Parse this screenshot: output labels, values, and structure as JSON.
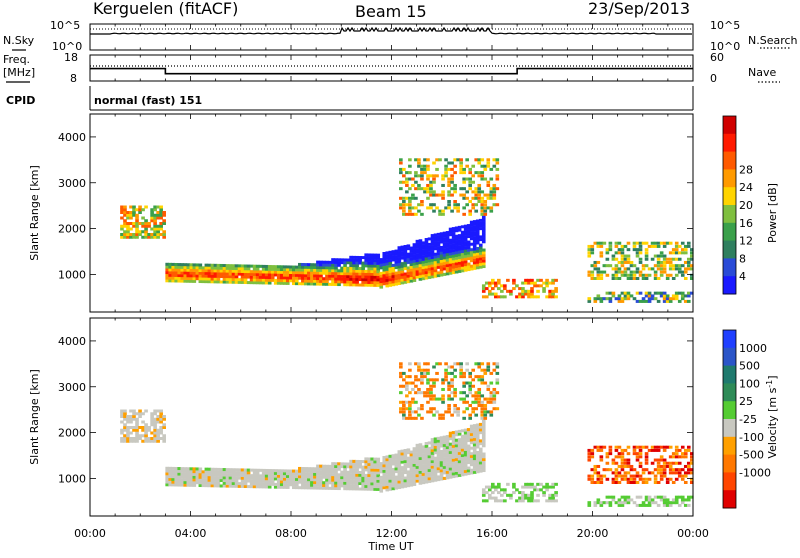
{
  "header": {
    "station": "Kerguelen (fitACF)",
    "beam": "Beam 15",
    "date": "23/Sep/2013"
  },
  "left_labels": {
    "nsky": "N.Sky",
    "freq_line1": "Freq.",
    "freq_line2": "[MHz]",
    "cpid": "CPID"
  },
  "right_labels": {
    "nsearch": "N.Search",
    "nave": "Nave"
  },
  "cpid_text": "normal (fast) 151",
  "x_axis_label": "Time UT",
  "y_axis_label": "Slant Range [km]",
  "power_label": "Power [dB]",
  "velocity_label_main": "Velocity [m s",
  "velocity_label_exp": "-1",
  "velocity_label_close": "]",
  "colors": {
    "power": [
      "#1a1aff",
      "#2a4bd7",
      "#2f7f5f",
      "#3aa04a",
      "#7fbf3f",
      "#ffd400",
      "#ff9a00",
      "#ff5a00",
      "#ff1a00",
      "#d00000"
    ],
    "velocity": [
      "#1f3fff",
      "#2b55c8",
      "#1f7a6e",
      "#2e8b57",
      "#55cc33",
      "#c8c8c0",
      "#ffa000",
      "#ff7800",
      "#ff4500",
      "#e00000"
    ],
    "frame": "#000000"
  },
  "chart_data": [
    {
      "type": "line",
      "name": "nsky-nsearch-strip",
      "y_left_ticks": [
        "10^5",
        "10^0"
      ],
      "y_right_ticks": [
        "10^5",
        "10^0"
      ]
    },
    {
      "type": "line",
      "name": "freq-nave-strip",
      "y_left_ticks": [
        "18",
        "8"
      ],
      "y_right_ticks": [
        "60",
        "0"
      ],
      "freq_steps": [
        {
          "start": 0.0,
          "end": 3.0,
          "value": 12.8
        },
        {
          "start": 3.0,
          "end": 17.0,
          "value": 10.8
        },
        {
          "start": 17.0,
          "end": 24.0,
          "value": 12.8
        }
      ]
    },
    {
      "type": "heatmap",
      "name": "power",
      "x_range_hours": [
        0,
        24
      ],
      "y_range_km": [
        180,
        4500
      ],
      "y_ticks": [
        "1000",
        "2000",
        "3000",
        "4000"
      ],
      "colorbar_ticks": [
        "4",
        "8",
        "12",
        "16",
        "20",
        "24",
        "28"
      ]
    },
    {
      "type": "heatmap",
      "name": "velocity",
      "x_range_hours": [
        0,
        24
      ],
      "y_range_km": [
        180,
        4500
      ],
      "y_ticks": [
        "1000",
        "2000",
        "3000",
        "4000"
      ],
      "colorbar_ticks": [
        "1000",
        "500",
        "100",
        "25",
        "-25",
        "-100",
        "-500",
        "-1000"
      ]
    }
  ],
  "x_ticks": [
    "00:00",
    "04:00",
    "08:00",
    "12:00",
    "16:00",
    "20:00",
    "00:00"
  ]
}
